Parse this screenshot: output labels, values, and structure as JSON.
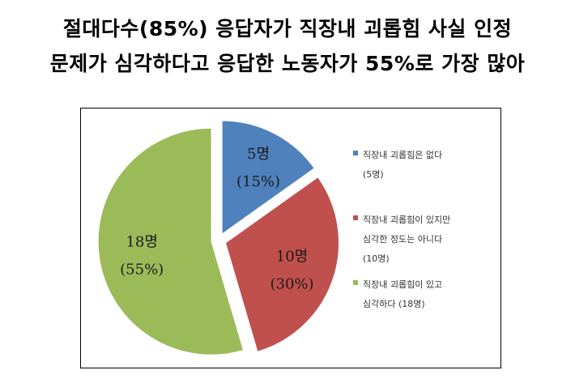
{
  "title": {
    "line1": "절대다수(85%) 응답자가 직장내 괴롭힘 사실 인정",
    "line2": "문제가 심각하다고 응답한 노동자가 55%로 가장 많아"
  },
  "chart_data": {
    "type": "pie",
    "categories": [
      "직장내 괴롭힘은 없다",
      "직장내 괴롭힘이 있지만 심각한 정도는 아니다",
      "직장내 괴롭힘이 있고 심각하다"
    ],
    "values": [
      5,
      10,
      18
    ],
    "percents": [
      15,
      30,
      55
    ],
    "slice_labels": [
      {
        "count": "5명",
        "percent": "(15%)"
      },
      {
        "count": "10명",
        "percent": "(30%)"
      },
      {
        "count": "18명",
        "percent": "(55%)"
      }
    ],
    "colors": [
      "#4F81BD",
      "#C0504D",
      "#9BBB59"
    ],
    "legend": [
      {
        "text": "직장내 괴롭힘은 없다\n(5명)",
        "color": "#4F81BD"
      },
      {
        "text": "직장내 괴롭힘이 있지만\n심각한 정도는 아니다\n(10명)",
        "color": "#C0504D"
      },
      {
        "text": "직장내 괴롭힘이 있고\n심각하다  (18명)",
        "color": "#9BBB59"
      }
    ],
    "legend_position": "right",
    "exploded": true
  }
}
